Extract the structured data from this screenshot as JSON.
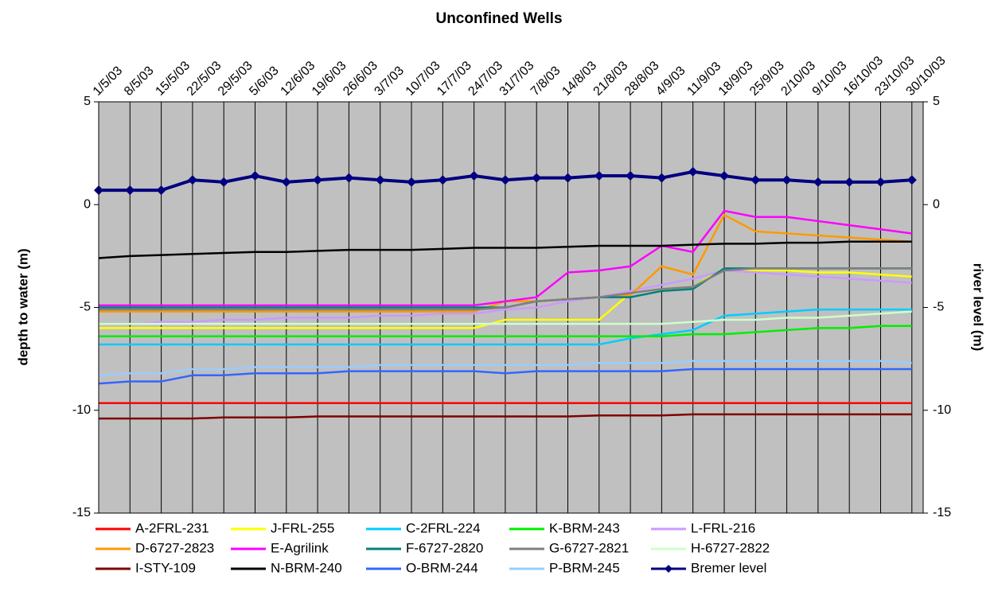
{
  "chart_data": {
    "type": "line",
    "title": "Unconfined Wells",
    "y_label": "depth to water (m)",
    "y2_label": "river level (m)",
    "categories": [
      "1/5/03",
      "8/5/03",
      "15/5/03",
      "22/5/03",
      "29/5/03",
      "5/6/03",
      "12/6/03",
      "19/6/03",
      "26/6/03",
      "3/7/03",
      "10/7/03",
      "17/7/03",
      "24/7/03",
      "31/7/03",
      "7/8/03",
      "14/8/03",
      "21/8/03",
      "28/8/03",
      "4/9/03",
      "11/9/03",
      "18/9/03",
      "25/9/03",
      "2/10/03",
      "9/10/03",
      "16/10/03",
      "23/10/03",
      "30/10/03"
    ],
    "ylim": [
      -15,
      5
    ],
    "yticks": [
      -15,
      -10,
      -5,
      0,
      5
    ],
    "y2lim": [
      -15,
      5
    ],
    "y2ticks": [
      -15,
      -10,
      -5,
      0,
      5
    ],
    "grid": true,
    "background": "#c0c0c0",
    "legend": "bottom",
    "series": [
      {
        "name": "A-2FRL-231",
        "color": "#ff0000",
        "values": [
          -9.65,
          -9.65,
          -9.65,
          -9.65,
          -9.65,
          -9.65,
          -9.65,
          -9.65,
          -9.65,
          -9.65,
          -9.65,
          -9.65,
          -9.65,
          -9.65,
          -9.65,
          -9.65,
          -9.65,
          -9.65,
          -9.65,
          -9.65,
          -9.65,
          -9.65,
          -9.65,
          -9.65,
          -9.65,
          -9.65,
          -9.65
        ]
      },
      {
        "name": "J-FRL-255",
        "color": "#ffff00",
        "values": [
          -6.0,
          -6.0,
          -6.0,
          -6.0,
          -6.0,
          -6.0,
          -6.0,
          -6.0,
          -6.0,
          -6.0,
          -6.0,
          -6.0,
          -6.0,
          -5.6,
          -5.6,
          -5.6,
          -5.6,
          -4.3,
          -4.1,
          -4.0,
          -3.1,
          -3.2,
          -3.2,
          -3.3,
          -3.3,
          -3.4,
          -3.5
        ]
      },
      {
        "name": "C-2FRL-224",
        "color": "#00ccff",
        "values": [
          -6.8,
          -6.8,
          -6.8,
          -6.8,
          -6.8,
          -6.8,
          -6.8,
          -6.8,
          -6.8,
          -6.8,
          -6.8,
          -6.8,
          -6.8,
          -6.8,
          -6.8,
          -6.8,
          -6.8,
          -6.5,
          -6.3,
          -6.1,
          -5.4,
          -5.3,
          -5.2,
          -5.1,
          -5.1,
          -5.1,
          -5.1
        ]
      },
      {
        "name": "K-BRM-243",
        "color": "#00ee00",
        "values": [
          -6.4,
          -6.4,
          -6.4,
          -6.4,
          -6.4,
          -6.4,
          -6.4,
          -6.4,
          -6.4,
          -6.4,
          -6.4,
          -6.4,
          -6.4,
          -6.4,
          -6.4,
          -6.4,
          -6.4,
          -6.4,
          -6.4,
          -6.3,
          -6.3,
          -6.2,
          -6.1,
          -6.0,
          -6.0,
          -5.9,
          -5.9
        ]
      },
      {
        "name": "L-FRL-216",
        "color": "#cc99ff",
        "values": [
          -5.8,
          -5.8,
          -5.7,
          -5.7,
          -5.6,
          -5.6,
          -5.5,
          -5.5,
          -5.5,
          -5.4,
          -5.4,
          -5.3,
          -5.3,
          -5.1,
          -5.0,
          -4.7,
          -4.5,
          -4.2,
          -3.9,
          -3.6,
          -3.2,
          -3.3,
          -3.4,
          -3.5,
          -3.6,
          -3.7,
          -3.8
        ]
      },
      {
        "name": "D-6727-2823",
        "color": "#ff9900",
        "values": [
          -5.2,
          -5.2,
          -5.2,
          -5.2,
          -5.2,
          -5.2,
          -5.2,
          -5.2,
          -5.2,
          -5.2,
          -5.2,
          -5.2,
          -5.2,
          -4.7,
          -4.7,
          -4.6,
          -4.5,
          -4.4,
          -3.0,
          -3.4,
          -0.5,
          -1.3,
          -1.4,
          -1.5,
          -1.6,
          -1.7,
          -1.8
        ]
      },
      {
        "name": "E-Agrilink",
        "color": "#ff00ff",
        "values": [
          -4.9,
          -4.9,
          -4.9,
          -4.9,
          -4.9,
          -4.9,
          -4.9,
          -4.9,
          -4.9,
          -4.9,
          -4.9,
          -4.9,
          -4.9,
          -4.7,
          -4.5,
          -3.3,
          -3.2,
          -3.0,
          -2.0,
          -2.3,
          -0.3,
          -0.6,
          -0.6,
          -0.8,
          -1.0,
          -1.2,
          -1.4
        ]
      },
      {
        "name": "F-6727-2820",
        "color": "#008080",
        "values": [
          -5.0,
          -5.0,
          -5.0,
          -5.0,
          -5.0,
          -5.0,
          -5.0,
          -5.0,
          -5.0,
          -5.0,
          -5.0,
          -5.0,
          -5.0,
          -5.0,
          -4.7,
          -4.6,
          -4.5,
          -4.5,
          -4.2,
          -4.1,
          -3.1,
          -3.1,
          -3.1,
          -3.1,
          -3.1,
          -3.1,
          -3.1
        ]
      },
      {
        "name": "G-6727-2821",
        "color": "#808080",
        "values": [
          -5.1,
          -5.1,
          -5.1,
          -5.1,
          -5.1,
          -5.1,
          -5.1,
          -5.1,
          -5.1,
          -5.1,
          -5.1,
          -5.1,
          -5.1,
          -5.0,
          -4.7,
          -4.6,
          -4.5,
          -4.3,
          -4.1,
          -4.0,
          -3.2,
          -3.1,
          -3.1,
          -3.1,
          -3.1,
          -3.1,
          -3.1
        ]
      },
      {
        "name": "H-6727-2822",
        "color": "#ccffcc",
        "values": [
          -5.8,
          -5.8,
          -5.8,
          -5.8,
          -5.8,
          -5.8,
          -5.8,
          -5.8,
          -5.8,
          -5.8,
          -5.8,
          -5.8,
          -5.8,
          -5.8,
          -5.8,
          -5.8,
          -5.8,
          -5.8,
          -5.8,
          -5.7,
          -5.6,
          -5.6,
          -5.5,
          -5.5,
          -5.4,
          -5.3,
          -5.2
        ]
      },
      {
        "name": "I-STY-109",
        "color": "#800000",
        "values": [
          -10.4,
          -10.4,
          -10.4,
          -10.4,
          -10.35,
          -10.35,
          -10.35,
          -10.3,
          -10.3,
          -10.3,
          -10.3,
          -10.3,
          -10.3,
          -10.3,
          -10.3,
          -10.3,
          -10.25,
          -10.25,
          -10.25,
          -10.2,
          -10.2,
          -10.2,
          -10.2,
          -10.2,
          -10.2,
          -10.2,
          -10.2
        ]
      },
      {
        "name": "N-BRM-240",
        "color": "#000000",
        "values": [
          -2.6,
          -2.5,
          -2.45,
          -2.4,
          -2.35,
          -2.3,
          -2.3,
          -2.25,
          -2.2,
          -2.2,
          -2.2,
          -2.15,
          -2.1,
          -2.1,
          -2.1,
          -2.05,
          -2.0,
          -2.0,
          -2.0,
          -1.95,
          -1.9,
          -1.9,
          -1.85,
          -1.85,
          -1.8,
          -1.8,
          -1.8
        ]
      },
      {
        "name": "O-BRM-244",
        "color": "#3366ff",
        "values": [
          -8.7,
          -8.6,
          -8.6,
          -8.3,
          -8.3,
          -8.2,
          -8.2,
          -8.2,
          -8.1,
          -8.1,
          -8.1,
          -8.1,
          -8.1,
          -8.2,
          -8.1,
          -8.1,
          -8.1,
          -8.1,
          -8.1,
          -8.0,
          -8.0,
          -8.0,
          -8.0,
          -8.0,
          -8.0,
          -8.0,
          -8.0
        ]
      },
      {
        "name": "P-BRM-245",
        "color": "#99ccff",
        "values": [
          -8.3,
          -8.2,
          -8.2,
          -8.0,
          -8.0,
          -7.9,
          -7.9,
          -7.9,
          -7.9,
          -7.8,
          -7.8,
          -7.8,
          -7.8,
          -7.8,
          -7.8,
          -7.8,
          -7.7,
          -7.7,
          -7.7,
          -7.6,
          -7.6,
          -7.6,
          -7.6,
          -7.6,
          -7.6,
          -7.6,
          -7.7
        ]
      },
      {
        "name": "Bremer level",
        "color": "#000080",
        "axis": "y2",
        "marker": "diamond",
        "values": [
          0.7,
          0.7,
          0.7,
          1.2,
          1.1,
          1.4,
          1.1,
          1.2,
          1.3,
          1.2,
          1.1,
          1.2,
          1.4,
          1.2,
          1.3,
          1.3,
          1.4,
          1.4,
          1.3,
          1.6,
          1.4,
          1.2,
          1.2,
          1.1,
          1.1,
          1.1,
          1.2
        ]
      }
    ]
  }
}
